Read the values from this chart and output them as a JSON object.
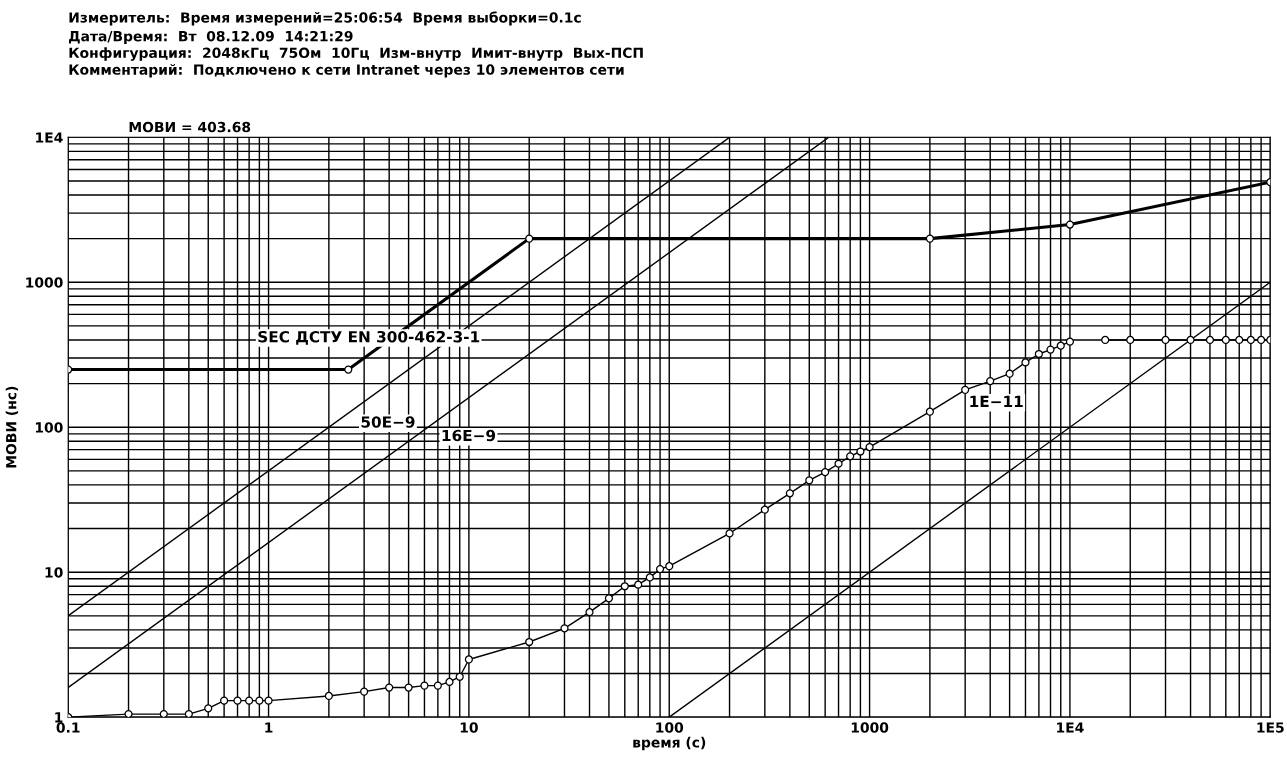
{
  "chart_data": {
    "type": "line",
    "title": "Измеритель:  Время измерений=25:06:54  Время выборки=0.1с",
    "subtitle": "Дата/Время:  Вт  08.12.09  14:21:29\nКонфигурация:  2048кГц  75Ом  10Гц  Изм-внутр  Имит-внутр  Вых-ПСП\nКомментарий:  Подключено к сети Intranet через 10 элементов сети",
    "xlabel": "время (с)",
    "ylabel": "МОВИ (нс)",
    "log": "xy",
    "grid": true,
    "xlim": [
      0.1,
      100000
    ],
    "ylim": [
      1,
      10000
    ],
    "xticks": [
      0.1,
      1,
      10,
      100,
      1000,
      {
        "value": 10000,
        "label": "1E4"
      },
      {
        "value": 100000,
        "label": "1E5"
      }
    ],
    "yticks": [
      1,
      10,
      100,
      1000,
      {
        "value": 10000,
        "label": "1E4"
      }
    ],
    "series": [
      {
        "name": "SEC ДСТУ EN 300-462-3-1",
        "color": "#000000",
        "marker": "circle",
        "x": [
          0.1,
          2.5,
          20,
          2000,
          10000,
          100000
        ],
        "values": [
          250,
          250,
          2000,
          2000,
          2500,
          4900
        ]
      },
      {
        "name": "50E−9",
        "color": "#000000",
        "marker": "none",
        "x": [
          0.1,
          200
        ],
        "values": [
          5,
          10000
        ]
      },
      {
        "name": "16E−9",
        "color": "#000000",
        "marker": "none",
        "x": [
          0.1,
          625
        ],
        "values": [
          1.6,
          10000
        ]
      },
      {
        "name": "1E−11",
        "color": "#000000",
        "marker": "none",
        "x": [
          100,
          100000
        ],
        "values": [
          1,
          1000
        ]
      },
      {
        "color": "#000000",
        "marker": "circle",
        "x": [
          0.1,
          0.2,
          0.3,
          0.4,
          0.5,
          0.6,
          0.7,
          0.8,
          0.9,
          1,
          2,
          3,
          4,
          5,
          6,
          7,
          8,
          9,
          10,
          20,
          30,
          40,
          50,
          60,
          70,
          80,
          90,
          100,
          200,
          300,
          400,
          500,
          600,
          700,
          800,
          900,
          1000,
          2000,
          3000,
          4000,
          5000,
          6000,
          7000,
          8000,
          9000,
          10000,
          12000,
          15000,
          20000,
          30000,
          40000,
          50000,
          60000,
          70000,
          80000,
          90000,
          100000
        ],
        "values": [
          1.0,
          1.05,
          1.05,
          1.05,
          1.15,
          1.3,
          1.3,
          1.3,
          1.3,
          1.3,
          1.4,
          1.5,
          1.6,
          1.6,
          1.65,
          1.65,
          1.75,
          1.9,
          2.5,
          3.3,
          4.1,
          5.3,
          6.6,
          8,
          8.2,
          9.2,
          10.5,
          11,
          18.5,
          27,
          35,
          43,
          49,
          56,
          63,
          68,
          73,
          128,
          181,
          208,
          234,
          280,
          320,
          343,
          365,
          389,
          null,
          400,
          400,
          400,
          400,
          400,
          400,
          400,
          400,
          400,
          400
        ]
      }
    ],
    "annotations": [
      "МОВИ = 403.68"
    ]
  }
}
